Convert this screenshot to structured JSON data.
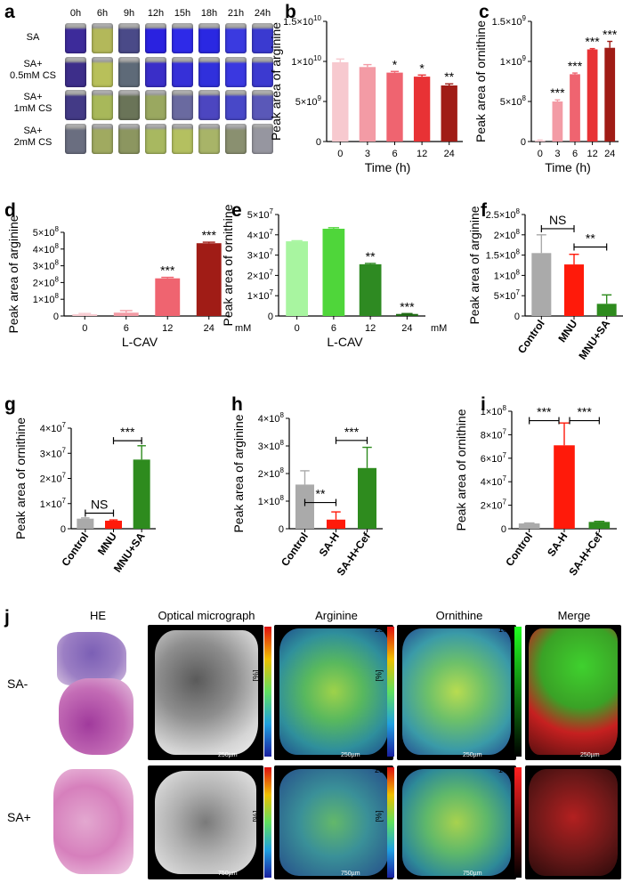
{
  "panel_a": {
    "letter": "a",
    "times": [
      "0h",
      "6h",
      "9h",
      "12h",
      "15h",
      "18h",
      "21h",
      "24h"
    ],
    "rows": [
      {
        "label_lines": [
          "SA"
        ],
        "colors": [
          "#3d2b9a",
          "#b3b85a",
          "#4a4a88",
          "#2a22e0",
          "#2e2ae8",
          "#2a28e2",
          "#3a3ae0",
          "#3a3ad0"
        ]
      },
      {
        "label_lines": [
          "SA+",
          "0.5mM CS"
        ],
        "colors": [
          "#3d2e8a",
          "#b8c05a",
          "#5e6a78",
          "#3a2ec8",
          "#3630d8",
          "#3030dc",
          "#3a38e0",
          "#3c3ad0"
        ]
      },
      {
        "label_lines": [
          "SA+",
          "1mM CS"
        ],
        "colors": [
          "#433a86",
          "#a8b85a",
          "#6a7458",
          "#9aa860",
          "#6a6aa0",
          "#4c46c0",
          "#4848c8",
          "#5a58b8"
        ]
      },
      {
        "label_lines": [
          "SA+",
          "2mM CS"
        ],
        "colors": [
          "#6a6e80",
          "#a0aa60",
          "#8c9660",
          "#a8b860",
          "#b4c060",
          "#a8b468",
          "#8a9070",
          "#9696a0"
        ]
      }
    ]
  },
  "chart_data": [
    {
      "id": "b",
      "type": "bar",
      "letter": "b",
      "categories": [
        "0",
        "3",
        "6",
        "12",
        "24"
      ],
      "values": [
        9900000000.0,
        9300000000.0,
        8600000000.0,
        8100000000.0,
        7000000000.0
      ],
      "errors": [
        400000000.0,
        300000000.0,
        150000000.0,
        200000000.0,
        200000000.0
      ],
      "sig": [
        "",
        "",
        "*",
        "*",
        "**"
      ],
      "colors": [
        "#f7c9cf",
        "#f39ba5",
        "#ef6470",
        "#e83235",
        "#a01c16"
      ],
      "ylabel": "Peak area of arginine",
      "xlabel": "Time (h)",
      "ylim": [
        0,
        15000000000.0
      ],
      "yticks": [
        {
          "v": 0,
          "base": "0",
          "exp": ""
        },
        {
          "v": 5000000000.0,
          "base": "5×10",
          "exp": "9"
        },
        {
          "v": 10000000000.0,
          "base": "1×10",
          "exp": "10"
        },
        {
          "v": 15000000000.0,
          "base": "1.5×10",
          "exp": "10"
        }
      ],
      "unit": ""
    },
    {
      "id": "c",
      "type": "bar",
      "letter": "c",
      "categories": [
        "0",
        "3",
        "6",
        "12",
        "24"
      ],
      "values": [
        15000000.0,
        500000000.0,
        840000000.0,
        1150000000.0,
        1170000000.0
      ],
      "errors": [
        5000000.0,
        20000000.0,
        15000000.0,
        10000000.0,
        80000000.0
      ],
      "sig": [
        "",
        "***",
        "***",
        "***",
        "***"
      ],
      "colors": [
        "#f7c9cf",
        "#f39ba5",
        "#ef6470",
        "#e83235",
        "#a01c16"
      ],
      "ylabel": "Peak area of ornithine",
      "xlabel": "Time (h)",
      "ylim": [
        0,
        1500000000.0
      ],
      "yticks": [
        {
          "v": 0,
          "base": "0",
          "exp": ""
        },
        {
          "v": 500000000.0,
          "base": "5×10",
          "exp": "8"
        },
        {
          "v": 1000000000.0,
          "base": "1×10",
          "exp": "9"
        },
        {
          "v": 1500000000.0,
          "base": "1.5×10",
          "exp": "9"
        }
      ],
      "unit": ""
    },
    {
      "id": "d",
      "type": "bar",
      "letter": "d",
      "categories": [
        "0",
        "6",
        "12",
        "24"
      ],
      "values": [
        10000000.0,
        20000000.0,
        225000000.0,
        435000000.0
      ],
      "errors": [
        5000000.0,
        12000000.0,
        6000000.0,
        6000000.0
      ],
      "sig": [
        "",
        "",
        "***",
        "***"
      ],
      "colors": [
        "#f7c9cf",
        "#f39ba5",
        "#ef6470",
        "#a01c16"
      ],
      "ylabel": "Peak area of arginine",
      "xlabel": "L-CAV",
      "ylim": [
        0,
        500000000.0
      ],
      "yticks": [
        {
          "v": 0,
          "base": "0",
          "exp": ""
        },
        {
          "v": 100000000.0,
          "base": "1×10",
          "exp": "8"
        },
        {
          "v": 200000000.0,
          "base": "2×10",
          "exp": "8"
        },
        {
          "v": 300000000.0,
          "base": "3×10",
          "exp": "8"
        },
        {
          "v": 400000000.0,
          "base": "4×10",
          "exp": "8"
        },
        {
          "v": 500000000.0,
          "base": "5×10",
          "exp": "8"
        }
      ],
      "unit": "mM"
    },
    {
      "id": "e",
      "type": "bar",
      "letter": "e",
      "categories": [
        "0",
        "6",
        "12",
        "24"
      ],
      "values": [
        36800000.0,
        43000000.0,
        25500000.0,
        1000000.0
      ],
      "errors": [
        300000.0,
        500000.0,
        400000.0,
        200000.0
      ],
      "sig": [
        "",
        "",
        "**",
        "***"
      ],
      "colors": [
        "#a8f5a0",
        "#4fd63a",
        "#2e8a22",
        "#1f6a14"
      ],
      "ylabel": "Peak area of ornithine",
      "xlabel": "L-CAV",
      "ylim": [
        0,
        50000000.0
      ],
      "yticks": [
        {
          "v": 0,
          "base": "0",
          "exp": ""
        },
        {
          "v": 10000000.0,
          "base": "1×10",
          "exp": "7"
        },
        {
          "v": 20000000.0,
          "base": "2×10",
          "exp": "7"
        },
        {
          "v": 30000000.0,
          "base": "3×10",
          "exp": "7"
        },
        {
          "v": 40000000.0,
          "base": "4×10",
          "exp": "7"
        },
        {
          "v": 50000000.0,
          "base": "5×10",
          "exp": "7"
        }
      ],
      "unit": "mM"
    },
    {
      "id": "f",
      "type": "bar",
      "letter": "f",
      "categories": [
        "Control",
        "MNU",
        "MNU+SA"
      ],
      "values": [
        155000000.0,
        127000000.0,
        30000000.0
      ],
      "errors": [
        45000000.0,
        25000000.0,
        22000000.0
      ],
      "sig_brackets": [
        {
          "from": 0,
          "to": 1,
          "label": "NS",
          "y": 215000000.0
        },
        {
          "from": 1,
          "to": 2,
          "label": "**",
          "y": 170000000.0
        }
      ],
      "colors": [
        "#aaaaaa",
        "#ff1a0a",
        "#2e8b1e"
      ],
      "ylabel": "Peak area of arginine",
      "xlabel": "",
      "ylim": [
        0,
        250000000.0
      ],
      "yticks": [
        {
          "v": 0,
          "base": "0",
          "exp": ""
        },
        {
          "v": 50000000.0,
          "base": "5×10",
          "exp": "7"
        },
        {
          "v": 100000000.0,
          "base": "1×10",
          "exp": "8"
        },
        {
          "v": 150000000.0,
          "base": "1.5×10",
          "exp": "8"
        },
        {
          "v": 200000000.0,
          "base": "2×10",
          "exp": "8"
        },
        {
          "v": 250000000.0,
          "base": "2.5×10",
          "exp": "8"
        }
      ],
      "unit": ""
    },
    {
      "id": "g",
      "type": "bar",
      "letter": "g",
      "categories": [
        "Control",
        "MNU",
        "MNU+SA"
      ],
      "values": [
        4000000.0,
        3200000.0,
        27500000.0
      ],
      "errors": [
        300000.0,
        300000.0,
        5500000.0
      ],
      "sig_brackets": [
        {
          "from": 0,
          "to": 1,
          "label": "NS",
          "y": 6200000.0
        },
        {
          "from": 1,
          "to": 2,
          "label": "***",
          "y": 35000000.0
        }
      ],
      "colors": [
        "#aaaaaa",
        "#ff1a0a",
        "#2e8b1e"
      ],
      "ylabel": "Peak area of ornithine",
      "xlabel": "",
      "ylim": [
        0,
        40000000.0
      ],
      "yticks": [
        {
          "v": 0,
          "base": "0",
          "exp": ""
        },
        {
          "v": 10000000.0,
          "base": "1×10",
          "exp": "7"
        },
        {
          "v": 20000000.0,
          "base": "2×10",
          "exp": "7"
        },
        {
          "v": 30000000.0,
          "base": "3×10",
          "exp": "7"
        },
        {
          "v": 40000000.0,
          "base": "4×10",
          "exp": "7"
        }
      ],
      "unit": ""
    },
    {
      "id": "h",
      "type": "bar",
      "letter": "h",
      "categories": [
        "Control",
        "SA-H",
        "SA-H+Cef"
      ],
      "values": [
        160000000.0,
        33000000.0,
        220000000.0
      ],
      "errors": [
        50000000.0,
        28000000.0,
        75000000.0
      ],
      "sig_brackets": [
        {
          "from": 0,
          "to": 1,
          "label": "**",
          "y": 95000000.0
        },
        {
          "from": 1,
          "to": 2,
          "label": "***",
          "y": 320000000.0
        }
      ],
      "colors": [
        "#aaaaaa",
        "#ff1a0a",
        "#2e8b1e"
      ],
      "ylabel": "Peak area of arginine",
      "xlabel": "",
      "ylim": [
        0,
        400000000.0
      ],
      "yticks": [
        {
          "v": 0,
          "base": "0",
          "exp": ""
        },
        {
          "v": 100000000.0,
          "base": "1×10",
          "exp": "8"
        },
        {
          "v": 200000000.0,
          "base": "2×10",
          "exp": "8"
        },
        {
          "v": 300000000.0,
          "base": "3×10",
          "exp": "8"
        },
        {
          "v": 400000000.0,
          "base": "4×10",
          "exp": "8"
        }
      ],
      "unit": ""
    },
    {
      "id": "i",
      "type": "bar",
      "letter": "i",
      "categories": [
        "Control",
        "SA-H",
        "SA-H+Cef"
      ],
      "values": [
        4500000.0,
        71000000.0,
        5800000.0
      ],
      "errors": [
        400000.0,
        19000000.0,
        500000.0
      ],
      "sig_brackets": [
        {
          "from": 0,
          "to": 1,
          "label": "***",
          "y": 92000000.0
        },
        {
          "from": 1,
          "to": 2,
          "label": "***",
          "y": 92000000.0
        }
      ],
      "colors": [
        "#aaaaaa",
        "#ff1a0a",
        "#2e8b1e"
      ],
      "ylabel": "Peak area of ornithine",
      "xlabel": "",
      "ylim": [
        0,
        100000000.0
      ],
      "yticks": [
        {
          "v": 0,
          "base": "0",
          "exp": ""
        },
        {
          "v": 20000000.0,
          "base": "2×10",
          "exp": "7"
        },
        {
          "v": 40000000.0,
          "base": "4×10",
          "exp": "7"
        },
        {
          "v": 60000000.0,
          "base": "6×10",
          "exp": "7"
        },
        {
          "v": 80000000.0,
          "base": "8×10",
          "exp": "7"
        },
        {
          "v": 100000000.0,
          "base": "1×10",
          "exp": "8"
        }
      ],
      "unit": ""
    }
  ],
  "panel_j": {
    "letter": "j",
    "columns": [
      "HE",
      "Optical micrograph",
      "Arginine",
      "Ornithine",
      "Merge"
    ],
    "rows": [
      "SA-",
      "SA+"
    ],
    "colorbar_pct": {
      "max": "25",
      "min": "0",
      "unit": "[%]"
    },
    "colorbar_merge": {
      "max": "100",
      "min": "0"
    },
    "scalebars": {
      "row1": "250µm",
      "row2": "750µm"
    }
  }
}
